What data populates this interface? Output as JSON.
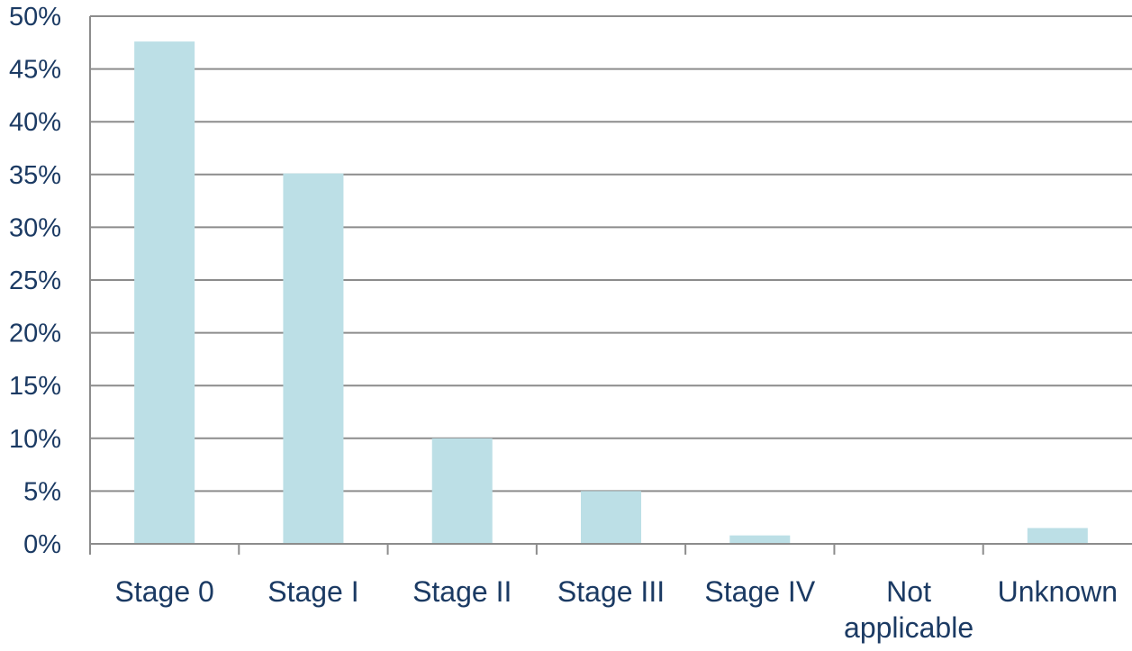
{
  "chart_data": {
    "type": "bar",
    "title": "",
    "xlabel": "",
    "ylabel": "",
    "categories": [
      "Stage 0",
      "Stage I",
      "Stage II",
      "Stage III",
      "Stage IV",
      "Not applicable",
      "Unknown"
    ],
    "category_label_lines": [
      [
        "Stage 0"
      ],
      [
        "Stage I"
      ],
      [
        "Stage II"
      ],
      [
        "Stage III"
      ],
      [
        "Stage IV"
      ],
      [
        "Not",
        "applicable"
      ],
      [
        "Unknown"
      ]
    ],
    "values": [
      47.6,
      35.1,
      10.0,
      5.0,
      0.8,
      0.0,
      1.5
    ],
    "value_format": "percent",
    "ylim": [
      0,
      50
    ],
    "yticks": [
      0,
      5,
      10,
      15,
      20,
      25,
      30,
      35,
      40,
      45,
      50
    ],
    "ytick_labels": [
      "0%",
      "5%",
      "10%",
      "15%",
      "20%",
      "25%",
      "30%",
      "35%",
      "40%",
      "45%",
      "50%"
    ],
    "grid": true,
    "legend": "none",
    "colors": {
      "bar": "#bcdfe6",
      "grid": "#8c8c8c",
      "text": "#1b3a63"
    }
  }
}
